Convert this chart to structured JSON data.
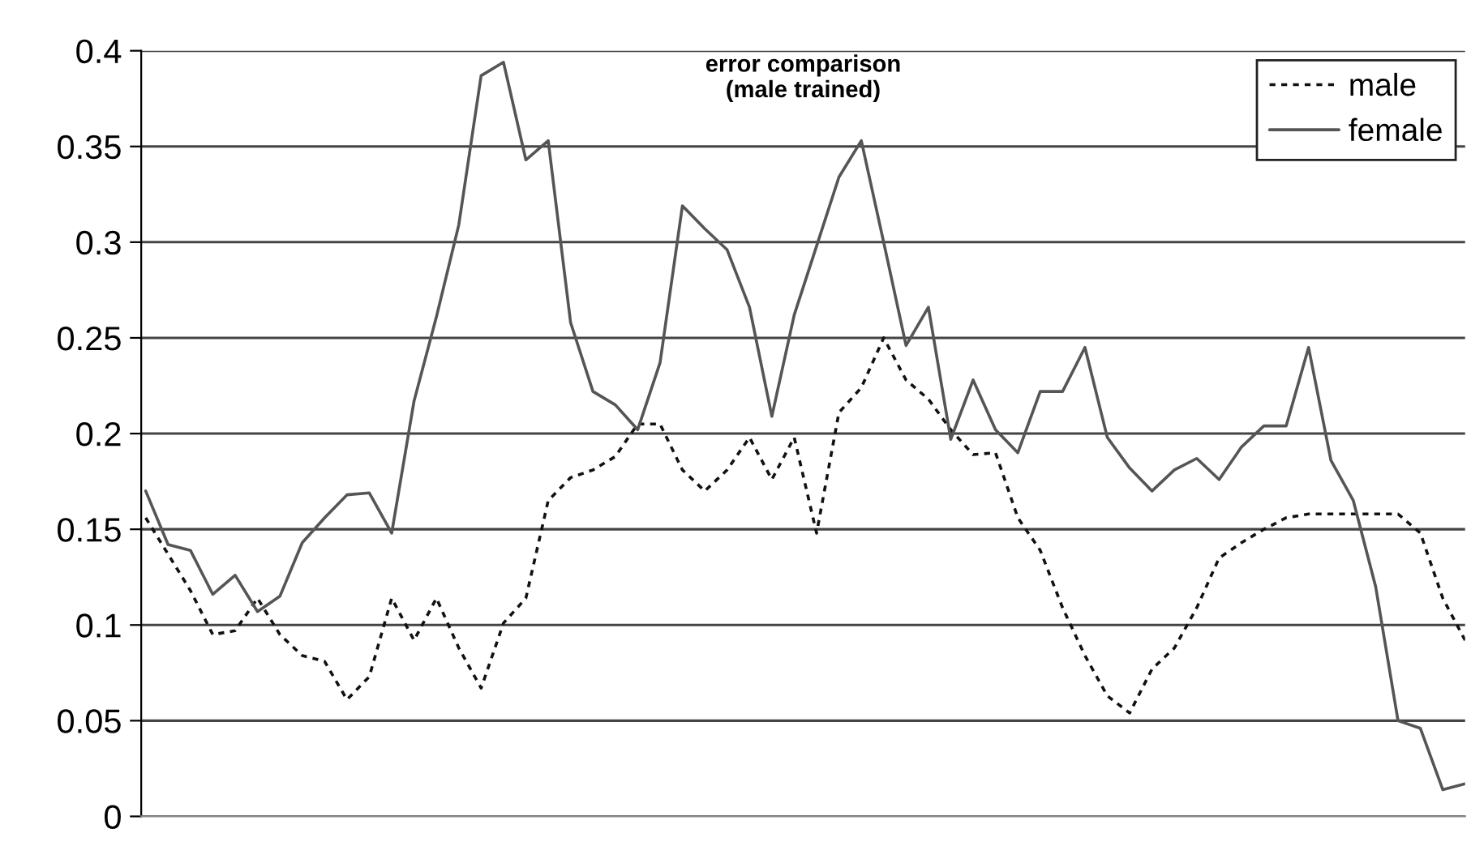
{
  "chart_data": {
    "type": "line",
    "title": "error comparison\n(male trained)",
    "categories": [
      null,
      null,
      null,
      null,
      null,
      null,
      null,
      null,
      null,
      null,
      null,
      null,
      null,
      null,
      null,
      null,
      null,
      null,
      null,
      null,
      null,
      null,
      null,
      null,
      null,
      null,
      null,
      null,
      null,
      null,
      null,
      null,
      null,
      null,
      null,
      null,
      null,
      null,
      null,
      null,
      null,
      null,
      null,
      null,
      null,
      null,
      null,
      null,
      null,
      null,
      null,
      null,
      null,
      null,
      null,
      null,
      null,
      null,
      null,
      null
    ],
    "series": [
      {
        "name": "male",
        "color": "#111111",
        "line_style": "dashed",
        "values": [
          0.156,
          0.137,
          0.118,
          0.095,
          0.097,
          0.114,
          0.095,
          0.084,
          0.081,
          0.061,
          0.073,
          0.114,
          0.092,
          0.114,
          0.088,
          0.067,
          0.101,
          0.114,
          0.165,
          0.177,
          0.181,
          0.188,
          0.205,
          0.205,
          0.181,
          0.17,
          0.181,
          0.198,
          0.176,
          0.198,
          0.148,
          0.211,
          0.224,
          0.25,
          0.228,
          0.218,
          0.202,
          0.189,
          0.19,
          0.156,
          0.139,
          0.109,
          0.084,
          0.063,
          0.054,
          0.077,
          0.088,
          0.109,
          0.135,
          0.143,
          0.15,
          0.156,
          0.158,
          0.158,
          0.158,
          0.158,
          0.158,
          0.148,
          0.114,
          0.092
        ]
      },
      {
        "name": "female",
        "color": "#555555",
        "line_style": "solid",
        "values": [
          0.17,
          0.142,
          0.139,
          0.116,
          0.126,
          0.107,
          0.115,
          0.143,
          0.156,
          0.168,
          0.169,
          0.148,
          0.217,
          0.261,
          0.309,
          0.387,
          0.394,
          0.343,
          0.353,
          0.258,
          0.222,
          0.215,
          0.202,
          0.237,
          0.319,
          0.307,
          0.296,
          0.266,
          0.209,
          0.262,
          0.298,
          0.334,
          0.353,
          0.3,
          0.246,
          0.266,
          0.197,
          0.228,
          0.202,
          0.19,
          0.222,
          0.222,
          0.245,
          0.198,
          0.182,
          0.17,
          0.181,
          0.187,
          0.176,
          0.193,
          0.204,
          0.204,
          0.245,
          0.186,
          0.165,
          0.12,
          0.05,
          0.046,
          0.014,
          0.017
        ]
      }
    ],
    "ylim": [
      0,
      0.4
    ],
    "yticks": [
      0,
      0.05,
      0.1,
      0.15,
      0.2,
      0.25,
      0.3,
      0.35,
      0.4
    ],
    "grid": "y",
    "legend": "top right",
    "tick_labels": "y"
  }
}
